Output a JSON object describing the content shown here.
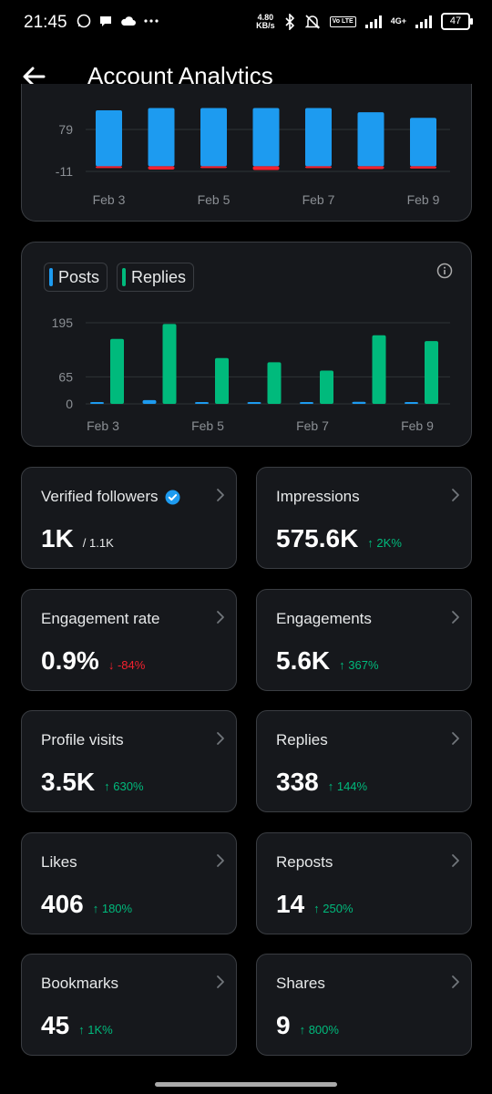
{
  "status_bar": {
    "time": "21:45",
    "speed_value": "4.80",
    "speed_unit": "KB/s",
    "volte": "Vo LTE",
    "network": "4G+",
    "battery": "47"
  },
  "header": {
    "title": "Account Analytics",
    "back_icon": "arrow-left-icon"
  },
  "colors": {
    "posts": "#1d9bf0",
    "replies": "#00ba7c",
    "negative": "#f4212e",
    "positive_delta": "#00ba7c"
  },
  "chart_data": [
    {
      "type": "bar",
      "categories": [
        "Feb 3",
        "Feb 4",
        "Feb 5",
        "Feb 6",
        "Feb 7",
        "Feb 8",
        "Feb 9"
      ],
      "x_tick_labels": [
        "Feb 3",
        "Feb 5",
        "Feb 7",
        "Feb 9"
      ],
      "y_tick_labels": [
        "79",
        "-11"
      ],
      "series": [
        {
          "values": [
            120,
            125,
            125,
            125,
            125,
            116,
            104
          ],
          "color": "#1d9bf0"
        },
        {
          "values": [
            -4,
            -7,
            -4,
            -8,
            -3,
            -6,
            -5
          ],
          "color": "#f4212e"
        }
      ],
      "grid": true
    },
    {
      "type": "bar",
      "categories": [
        "Feb 3",
        "Feb 4",
        "Feb 5",
        "Feb 6",
        "Feb 7",
        "Feb 8",
        "Feb 9"
      ],
      "x_tick_labels": [
        "Feb 3",
        "Feb 5",
        "Feb 7",
        "Feb 9"
      ],
      "y_tick_labels": [
        "195",
        "65",
        "0"
      ],
      "ylim": [
        0,
        195
      ],
      "series": [
        {
          "name": "Posts",
          "values": [
            1,
            9,
            2,
            0,
            0,
            5,
            1
          ],
          "color": "#1d9bf0"
        },
        {
          "name": "Replies",
          "values": [
            156,
            192,
            110,
            100,
            80,
            165,
            151
          ],
          "color": "#00ba7c"
        }
      ],
      "legend": "top-left",
      "grid": true
    }
  ],
  "legend": {
    "posts": "Posts",
    "replies": "Replies"
  },
  "stats": [
    {
      "label": "Verified followers",
      "value": "1K",
      "sub": "/ 1.1K",
      "delta": "",
      "dir": ""
    },
    {
      "label": "Impressions",
      "value": "575.6K",
      "sub": "",
      "delta": "2K%",
      "dir": "up"
    },
    {
      "label": "Engagement rate",
      "value": "0.9%",
      "sub": "",
      "delta": "-84%",
      "dir": "down"
    },
    {
      "label": "Engagements",
      "value": "5.6K",
      "sub": "",
      "delta": "367%",
      "dir": "up"
    },
    {
      "label": "Profile visits",
      "value": "3.5K",
      "sub": "",
      "delta": "630%",
      "dir": "up"
    },
    {
      "label": "Replies",
      "value": "338",
      "sub": "",
      "delta": "144%",
      "dir": "up"
    },
    {
      "label": "Likes",
      "value": "406",
      "sub": "",
      "delta": "180%",
      "dir": "up"
    },
    {
      "label": "Reposts",
      "value": "14",
      "sub": "",
      "delta": "250%",
      "dir": "up"
    },
    {
      "label": "Bookmarks",
      "value": "45",
      "sub": "",
      "delta": "1K%",
      "dir": "up"
    },
    {
      "label": "Shares",
      "value": "9",
      "sub": "",
      "delta": "800%",
      "dir": "up"
    }
  ]
}
